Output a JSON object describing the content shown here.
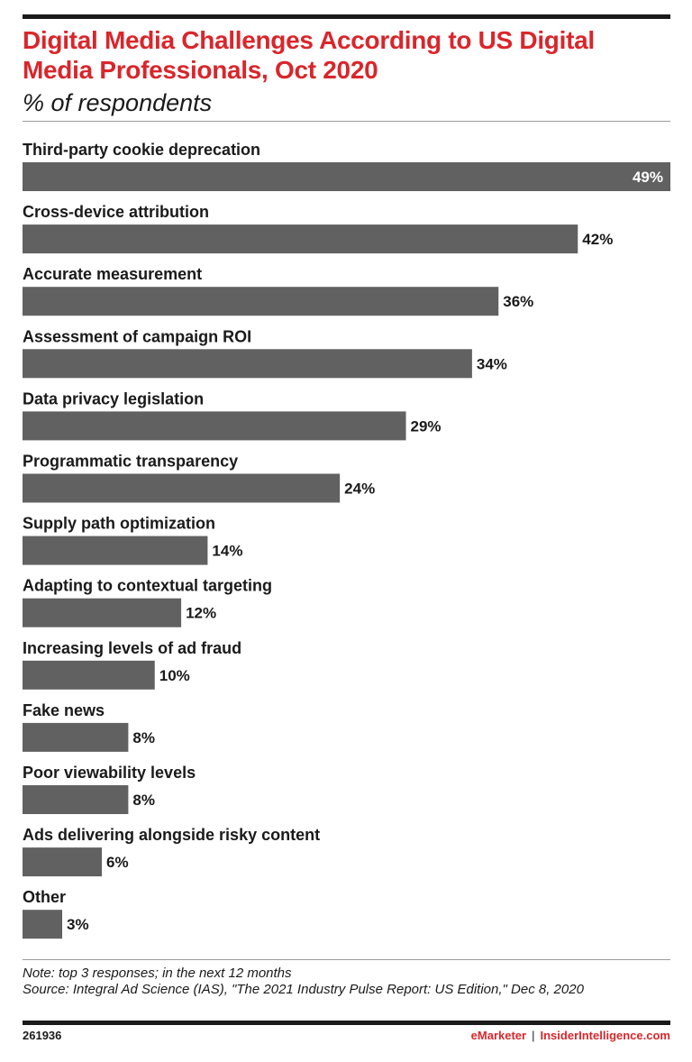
{
  "header": {
    "title": "Digital Media Challenges According to US Digital Media Professionals, Oct 2020",
    "subtitle": "% of respondents"
  },
  "chart_data": {
    "type": "bar",
    "orientation": "horizontal",
    "categories": [
      "Third-party cookie deprecation",
      "Cross-device attribution",
      "Accurate measurement",
      "Assessment of campaign ROI",
      "Data privacy legislation",
      "Programmatic transparency",
      "Supply path optimization",
      "Adapting to contextual targeting",
      "Increasing levels of ad fraud",
      "Fake news",
      "Poor viewability levels",
      "Ads delivering alongside risky content",
      "Other"
    ],
    "values": [
      49,
      42,
      36,
      34,
      29,
      24,
      14,
      12,
      10,
      8,
      8,
      6,
      3
    ],
    "value_labels": [
      "49%",
      "42%",
      "36%",
      "34%",
      "29%",
      "24%",
      "14%",
      "12%",
      "10%",
      "8%",
      "8%",
      "6%",
      "3%"
    ],
    "xlim": [
      0,
      49
    ],
    "grid": false,
    "colors": {
      "bar": "#616161",
      "inside_label": "#ffffff",
      "outside_label": "#1a1a1a"
    }
  },
  "footer": {
    "note": "Note: top 3 responses; in the next 12 months",
    "source": "Source: Integral Ad Science (IAS), \"The 2021 Industry Pulse Report: US Edition,\" Dec 8, 2020",
    "chart_id": "261936",
    "brand_emarketer": "eMarketer",
    "brand_separator": "|",
    "brand_insider": "InsiderIntelligence.com"
  },
  "colors": {
    "accent": "#d9262b",
    "text": "#1a1a1a",
    "rule": "#9a9a9a"
  }
}
